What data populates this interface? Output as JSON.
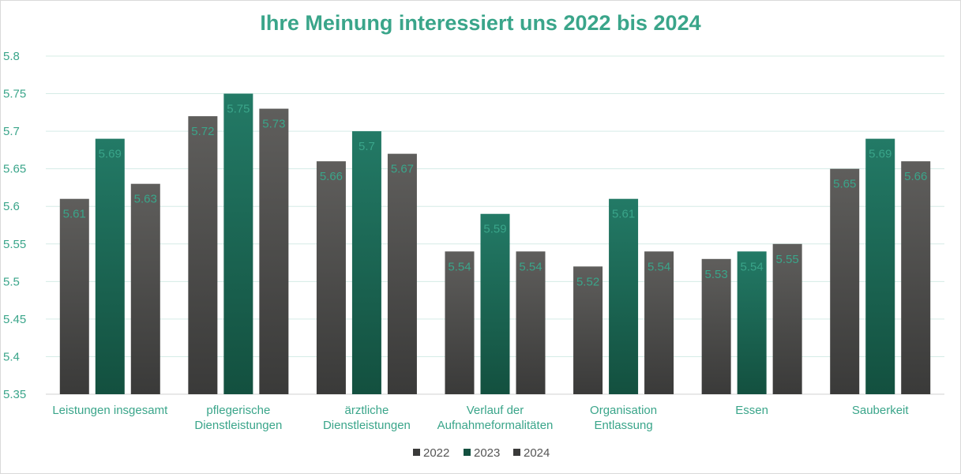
{
  "chart_data": {
    "type": "bar",
    "title": "Ihre Meinung interessiert uns 2022 bis 2024",
    "categories": [
      [
        "Leistungen insgesamt"
      ],
      [
        "pflegerische",
        "Dienstleistungen"
      ],
      [
        "ärztliche",
        "Dienstleistungen"
      ],
      [
        "Verlauf der",
        "Aufnahmeformalitäten"
      ],
      [
        "Organisation",
        "Entlassung"
      ],
      [
        "Essen"
      ],
      [
        "Sauberkeit"
      ]
    ],
    "series": [
      {
        "name": "2022",
        "values": [
          5.61,
          5.72,
          5.66,
          5.54,
          5.52,
          5.53,
          5.65
        ]
      },
      {
        "name": "2023",
        "values": [
          5.69,
          5.75,
          5.7,
          5.59,
          5.61,
          5.54,
          5.69
        ]
      },
      {
        "name": "2024",
        "values": [
          5.63,
          5.73,
          5.67,
          5.54,
          5.54,
          5.55,
          5.66
        ]
      }
    ],
    "ylim": [
      5.35,
      5.8
    ],
    "yticks": [
      "5.35",
      "5.4",
      "5.45",
      "5.5",
      "5.55",
      "5.6",
      "5.65",
      "5.7",
      "5.75",
      "5.8"
    ],
    "grid": true,
    "legend": "bottom",
    "colors": {
      "2022": [
        "#5f5e5c",
        "#3a3a39"
      ],
      "2023": [
        "#237a66",
        "#13503f"
      ],
      "2024": [
        "#5f5e5c",
        "#3a3a39"
      ],
      "text": "#3aa58a",
      "grid": "#d5ece6"
    }
  }
}
